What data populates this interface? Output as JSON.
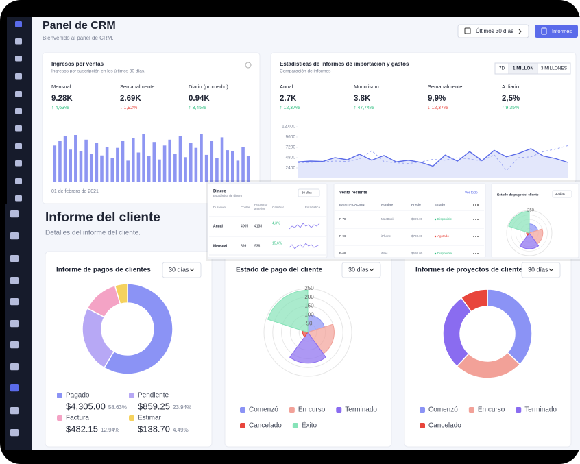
{
  "header": {
    "title": "Panel de CRM",
    "subtitle": "Bienvenido al panel de CRM.",
    "date_button": "Últimos 30 días",
    "report_button": "Informes"
  },
  "sales_card": {
    "title": "Ingresos por ventas",
    "subtitle": "Ingresos por suscripción en los últimos 30 días.",
    "stats": [
      {
        "label": "Mensual",
        "value": "9.28K",
        "change": "↑ 4,63%",
        "trend": "up"
      },
      {
        "label": "Semanalmente",
        "value": "2.69K",
        "change": "↓ 1,92%",
        "trend": "down"
      },
      {
        "label": "Diario (promedio)",
        "value": "0.94K",
        "change": "↑ 3,45%",
        "trend": "up"
      }
    ],
    "chart": {
      "type": "bar",
      "x_label": "01 de febrero de 2021",
      "color": "#8e96f2",
      "ylim": [
        0,
        100
      ],
      "values": [
        62,
        70,
        78,
        55,
        80,
        52,
        72,
        48,
        66,
        45,
        60,
        40,
        58,
        70,
        36,
        75,
        50,
        82,
        44,
        68,
        38,
        62,
        72,
        48,
        78,
        42,
        66,
        58,
        82,
        46,
        70,
        40,
        76,
        54,
        52,
        36,
        60,
        44
      ]
    }
  },
  "import_card": {
    "title": "Estadísticas de informes de importación y gastos",
    "subtitle": "Comparación de informes",
    "toggles": [
      "7D",
      "1 MILLÓN",
      "3 MILLONES"
    ],
    "stats": [
      {
        "label": "Anual",
        "value": "2.7K",
        "change": "↑ 12,37%",
        "trend": "up"
      },
      {
        "label": "Monotismo",
        "value": "3.8K",
        "change": "↑ 47,74%",
        "trend": "up"
      },
      {
        "label": "Semanalmente",
        "value": "9,9%",
        "change": "↓ 12,37%",
        "trend": "down"
      },
      {
        "label": "A diario",
        "value": "2,5%",
        "change": "↑ 9,35%",
        "trend": "up"
      }
    ],
    "chart": {
      "type": "line",
      "ylim": [
        0,
        12000
      ],
      "yticks": [
        {
          "value": 12000,
          "label": "12.000"
        },
        9600,
        7200,
        4800,
        2400
      ],
      "series": [
        {
          "color": "#5b6be8",
          "area": true,
          "values": [
            3800,
            4000,
            3900,
            4800,
            4300,
            5600,
            4200,
            5300,
            3800,
            4200,
            3700,
            2800,
            5400,
            4000,
            6200,
            4100,
            6500,
            5000,
            5800,
            6900,
            5200,
            4600,
            3700
          ]
        },
        {
          "color": "#9aa5f3",
          "dashed": true,
          "values": [
            3600,
            3700,
            3800,
            4000,
            3900,
            4500,
            6400,
            3900,
            3600,
            3400,
            3800,
            4400,
            4200,
            4800,
            4500,
            4000,
            5500,
            1800,
            4800,
            5000,
            6200,
            6800,
            7600
          ]
        }
      ]
    }
  },
  "money_card": {
    "title": "Dinero",
    "subtitle": "Estadística de dinero",
    "dropdown": "30 días",
    "headers": [
      "Duración",
      "Contar",
      "Recuento anterior",
      "Cambiar",
      "Estadística"
    ],
    "rows": [
      {
        "cells": [
          "Anual",
          "4005",
          "4138",
          "4,3%"
        ],
        "sparkline": [
          3,
          5,
          4,
          6,
          4,
          7,
          5,
          6,
          4,
          6,
          5,
          7
        ]
      },
      {
        "cells": [
          "Mensual",
          "899",
          "936",
          "15,6%"
        ],
        "sparkline": [
          4,
          6,
          3,
          5,
          6,
          4,
          7,
          5,
          6,
          4,
          5,
          6
        ]
      }
    ]
  },
  "recent_sales_card": {
    "title": "Venta reciente",
    "link": "Ver todo",
    "headers": [
      "IDENTIFICACIÓN",
      "Nombre",
      "Precio",
      "Estado"
    ],
    "rows": [
      {
        "cells": [
          "P-78",
          "MacBook",
          "$999.00",
          "Disponible"
        ],
        "status_color": "#2dbd7e"
      },
      {
        "cells": [
          "P-96",
          "iPhone",
          "$700.00",
          "Agotado"
        ],
        "status_color": "#e8453c"
      },
      {
        "cells": [
          "P-68",
          "iMac",
          "$599.00",
          "Disponible"
        ],
        "status_color": "#2dbd7e"
      }
    ]
  },
  "mini_payment_card": {
    "title": "Estado de pago del cliente",
    "dropdown": "30 días",
    "chart": {
      "type": "polar",
      "rlim": [
        0,
        250
      ],
      "rticks": [
        250
      ],
      "values": [
        100,
        150,
        175,
        30,
        240
      ],
      "colors": [
        "#8b93f5",
        "#f2a198",
        "#8a6cf0",
        "#e8453c",
        "#86e3b8"
      ]
    }
  },
  "client_report": {
    "title": "Informe del cliente",
    "subtitle": "Detalles del informe del cliente.",
    "cards": [
      {
        "title": "Informe de pagos de clientes",
        "dropdown": "30 días",
        "chart": {
          "type": "donut",
          "categories": [
            "Pagado",
            "Pendiente",
            "Factura",
            "Estimar"
          ],
          "values": [
            58.63,
            23.94,
            12.94,
            4.49
          ],
          "value_labels": [
            "58.63%",
            "23.94%",
            "12.94%",
            "4.49%"
          ],
          "amounts": [
            "$4,305.00",
            "$859.25",
            "$482.15",
            "$138.70"
          ],
          "colors": [
            "#8b93f5",
            "#b7a8f5",
            "#f4a3c5",
            "#f5d25e"
          ]
        }
      },
      {
        "title": "Estado de pago del cliente",
        "dropdown": "30 días",
        "chart": {
          "type": "polar",
          "categories": [
            "Comenzó",
            "En curso",
            "Terminado",
            "Cancelado",
            "Éxito"
          ],
          "values": [
            100,
            150,
            175,
            30,
            240
          ],
          "rlim": [
            0,
            250
          ],
          "rticks": [
            50,
            100,
            150,
            200,
            250
          ],
          "colors": [
            "#8b93f5",
            "#f2a198",
            "#8a6cf0",
            "#e8453c",
            "#86e3b8"
          ]
        }
      },
      {
        "title": "Informes de proyectos de clientes",
        "dropdown": "30 días",
        "chart": {
          "type": "donut",
          "categories": [
            "Comenzó",
            "En curso",
            "Terminado",
            "Cancelado"
          ],
          "values": [
            37,
            25,
            28,
            10
          ],
          "colors": [
            "#8b93f5",
            "#f2a198",
            "#8a6cf0",
            "#e8453c"
          ]
        }
      }
    ]
  }
}
